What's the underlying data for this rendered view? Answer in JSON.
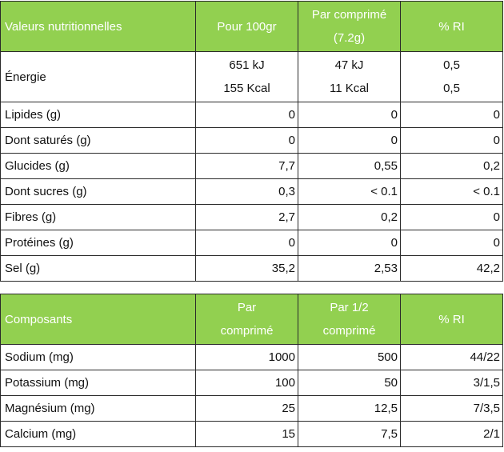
{
  "table1": {
    "header": [
      "Valeurs nutritionnelles",
      "Pour 100gr",
      "Par comprimé",
      "(7.2g)",
      "% RI"
    ],
    "energy": {
      "label": "Énergie",
      "per100": [
        "651 kJ",
        "155 Kcal"
      ],
      "tablet": [
        "47 kJ",
        "11 Kcal"
      ],
      "ri": [
        "0,5",
        "0,5"
      ]
    },
    "rows": [
      [
        "Lipides (g)",
        "0",
        "0",
        "0"
      ],
      [
        "Dont saturés (g)",
        "0",
        "0",
        "0"
      ],
      [
        "Glucides (g)",
        "7,7",
        "0,55",
        "0,2"
      ],
      [
        "Dont sucres (g)",
        "0,3",
        "< 0.1",
        "< 0.1"
      ],
      [
        "Fibres (g)",
        "2,7",
        "0,2",
        "0"
      ],
      [
        "Protéines (g)",
        "0",
        "0",
        "0"
      ],
      [
        "Sel (g)",
        "35,2",
        "2,53",
        "42,2"
      ]
    ]
  },
  "table2": {
    "header": [
      "Composants",
      "Par",
      "comprimé",
      "Par 1/2",
      "comprimé",
      "% RI"
    ],
    "rows": [
      [
        "Sodium (mg)",
        "1000",
        "500",
        "44/22"
      ],
      [
        "Potassium (mg)",
        "100",
        "50",
        "3/1,5"
      ],
      [
        "Magnésium (mg)",
        "25",
        "12,5",
        "7/3,5"
      ],
      [
        "Calcium (mg)",
        "15",
        "7,5",
        "2/1"
      ]
    ]
  },
  "colors": {
    "header_bg": "#92d050",
    "header_text": "#ffffff",
    "border": "#2a2a2a"
  }
}
